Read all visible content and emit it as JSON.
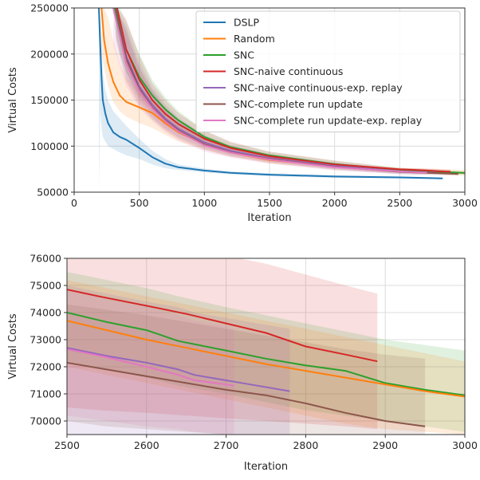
{
  "chart_data": [
    {
      "type": "line",
      "xlabel": "Iteration",
      "ylabel": "Virtual Costs",
      "xlim": [
        0,
        3000
      ],
      "ylim": [
        50000,
        250000
      ],
      "xticks": [
        0,
        500,
        1000,
        1500,
        2000,
        2500,
        3000
      ],
      "yticks": [
        50000,
        100000,
        150000,
        200000,
        250000
      ],
      "xtick_labels": [
        "0",
        "500",
        "1000",
        "1500",
        "2000",
        "2500",
        "3000"
      ],
      "ytick_labels": [
        "50000",
        "100000",
        "150000",
        "200000",
        "250000"
      ],
      "grid": true,
      "legend_position": "top-right",
      "series": [
        {
          "name": "DSLP",
          "color": "#1f77b4",
          "x": [
            190,
            200,
            210,
            220,
            240,
            260,
            300,
            350,
            400,
            500,
            600,
            700,
            800,
            1000,
            1200,
            1500,
            2000,
            2500,
            2830
          ],
          "y": [
            250000,
            210000,
            175000,
            150000,
            135000,
            125000,
            115000,
            110000,
            107000,
            98000,
            88000,
            81000,
            77000,
            73500,
            71000,
            69000,
            67000,
            66000,
            65000
          ],
          "band_upper": [
            250000,
            240000,
            210000,
            180000,
            160000,
            150000,
            138000,
            130000,
            122000,
            108000,
            95000,
            86000,
            80000,
            75500,
            72500,
            70500,
            68500,
            67000,
            66000
          ],
          "band_lower": [
            50000,
            140000,
            120000,
            110000,
            105000,
            100000,
            97000,
            93000,
            90000,
            86000,
            80000,
            76000,
            74000,
            71500,
            69500,
            67500,
            65500,
            65000,
            64000
          ]
        },
        {
          "name": "Random",
          "color": "#ff7f0e",
          "x": [
            210,
            230,
            260,
            300,
            350,
            400,
            500,
            600,
            700,
            800,
            1000,
            1200,
            1500,
            2000,
            2500,
            3000
          ],
          "y": [
            250000,
            215000,
            190000,
            170000,
            155000,
            148000,
            142000,
            136000,
            125000,
            115000,
            102000,
            93000,
            85000,
            78000,
            73700,
            70900
          ],
          "band_upper": [
            250000,
            250000,
            240000,
            215000,
            190000,
            175000,
            160000,
            150000,
            138000,
            125000,
            108000,
            98000,
            89000,
            81000,
            76500,
            74000
          ],
          "band_lower": [
            200000,
            185000,
            165000,
            148000,
            138000,
            132000,
            125000,
            120000,
            112000,
            105000,
            96000,
            89000,
            81000,
            75000,
            71000,
            68000
          ]
        },
        {
          "name": "SNC",
          "color": "#2ca02c",
          "x": [
            310,
            350,
            400,
            500,
            600,
            700,
            800,
            1000,
            1200,
            1500,
            2000,
            2500,
            2600,
            2700,
            2800,
            2900,
            3000
          ],
          "y": [
            250000,
            225000,
            205000,
            175000,
            155000,
            140000,
            128000,
            110000,
            99000,
            90000,
            80500,
            74000,
            73300,
            72600,
            72100,
            71500,
            70900
          ],
          "band_upper": [
            250000,
            250000,
            235000,
            200000,
            172000,
            153000,
            138000,
            117000,
            104000,
            94000,
            84000,
            76500,
            75800,
            75000,
            74300,
            73500,
            72700
          ],
          "band_lower": [
            230000,
            200000,
            180000,
            155000,
            140000,
            128000,
            118000,
            104000,
            95000,
            86500,
            77500,
            71500,
            70800,
            70300,
            69900,
            69400,
            69000
          ]
        },
        {
          "name": "SNC-naive continuous",
          "color": "#d62728",
          "x": [
            330,
            400,
            500,
            600,
            700,
            800,
            1000,
            1200,
            1500,
            2000,
            2500,
            2600,
            2700,
            2800,
            2890
          ],
          "y": [
            250000,
            205000,
            172000,
            150000,
            135000,
            124000,
            108000,
            98000,
            89000,
            80000,
            74800,
            74200,
            73600,
            72800,
            72200
          ],
          "band_upper": [
            250000,
            238000,
            198000,
            168000,
            150000,
            136000,
            117000,
            105000,
            94000,
            84500,
            76000,
            76000,
            75600,
            75200,
            74700
          ],
          "band_lower": [
            230000,
            180000,
            152000,
            135000,
            123000,
            114000,
            101000,
            92000,
            84500,
            76500,
            71000,
            70500,
            70000,
            69500,
            69200
          ]
        },
        {
          "name": "SNC-naive continuous-exp. replay",
          "color": "#9467bd",
          "x": [
            320,
            400,
            500,
            600,
            700,
            800,
            1000,
            1200,
            1500,
            2000,
            2500,
            2600,
            2700,
            2780
          ],
          "y": [
            250000,
            198000,
            165000,
            145000,
            130000,
            119000,
            104000,
            95000,
            87000,
            78500,
            72700,
            72100,
            71400,
            71100
          ],
          "band_upper": [
            250000,
            230000,
            190000,
            163000,
            145000,
            131000,
            112000,
            101000,
            91500,
            82000,
            75500,
            75000,
            74600,
            74200
          ],
          "band_lower": [
            220000,
            175000,
            148000,
            131000,
            119000,
            110000,
            98000,
            90000,
            83000,
            75000,
            69500,
            69500,
            69500,
            69500
          ]
        },
        {
          "name": "SNC-complete run update",
          "color": "#8c564b",
          "x": [
            320,
            400,
            500,
            600,
            700,
            800,
            1000,
            1200,
            1500,
            2000,
            2500,
            2600,
            2700,
            2800,
            2900,
            2950
          ],
          "y": [
            250000,
            195000,
            162000,
            142000,
            128000,
            117000,
            102000,
            93500,
            86000,
            77500,
            72150,
            71600,
            71100,
            70600,
            70000,
            69800
          ],
          "band_upper": [
            250000,
            225000,
            185000,
            160000,
            142000,
            129000,
            111000,
            100000,
            90500,
            81000,
            74500,
            74000,
            73400,
            72900,
            72500,
            72300
          ],
          "band_lower": [
            215000,
            170000,
            144000,
            129000,
            117000,
            108000,
            96000,
            88500,
            82000,
            74000,
            69800,
            69300,
            68900,
            68400,
            67900,
            67600
          ]
        },
        {
          "name": "SNC-complete run update-exp. replay",
          "color": "#e377c2",
          "x": [
            300,
            400,
            500,
            600,
            700,
            800,
            1000,
            1200,
            1500,
            2000,
            2500,
            2560,
            2620,
            2660,
            2710
          ],
          "y": [
            250000,
            190000,
            160000,
            141000,
            127000,
            116000,
            101000,
            93000,
            85500,
            77000,
            72600,
            72100,
            71700,
            71500,
            71300
          ],
          "band_upper": [
            250000,
            220000,
            182000,
            158000,
            140000,
            127000,
            109000,
            99000,
            90000,
            80500,
            75500,
            75000,
            74700,
            74500,
            74200
          ],
          "band_lower": [
            210000,
            165000,
            141000,
            127000,
            115000,
            106000,
            94000,
            87500,
            81000,
            73500,
            69700,
            69500,
            69300,
            69200,
            69100
          ]
        }
      ]
    },
    {
      "type": "line",
      "xlabel": "Iteration",
      "ylabel": "Virtual Costs",
      "xlim": [
        2500,
        3000
      ],
      "ylim": [
        69500,
        76000
      ],
      "xticks": [
        2500,
        2600,
        2700,
        2800,
        2900,
        3000
      ],
      "yticks": [
        70000,
        71000,
        72000,
        73000,
        74000,
        75000,
        76000
      ],
      "xtick_labels": [
        "2500",
        "2600",
        "2700",
        "2800",
        "2900",
        "3000"
      ],
      "ytick_labels": [
        "70000",
        "71000",
        "72000",
        "73000",
        "74000",
        "75000",
        "76000"
      ],
      "grid": true,
      "legend_position": "none",
      "series": [
        {
          "color": "#d62728",
          "x": [
            2500,
            2540,
            2600,
            2650,
            2700,
            2750,
            2800,
            2850,
            2890
          ],
          "y": [
            74850,
            74600,
            74250,
            73950,
            73600,
            73250,
            72750,
            72450,
            72200
          ],
          "band_upper": [
            76500,
            76400,
            76300,
            76200,
            76100,
            75800,
            75400,
            75000,
            74700
          ],
          "band_lower": [
            70500,
            70400,
            70300,
            70200,
            70100,
            70000,
            69900,
            69800,
            69700
          ]
        },
        {
          "color": "#2ca02c",
          "x": [
            2500,
            2550,
            2600,
            2640,
            2700,
            2750,
            2800,
            2850,
            2900,
            2950,
            3000
          ],
          "y": [
            74000,
            73650,
            73350,
            72950,
            72600,
            72300,
            72050,
            71850,
            71400,
            71150,
            70950
          ],
          "band_upper": [
            75500,
            75200,
            74900,
            74600,
            74200,
            73900,
            73600,
            73300,
            73000,
            72800,
            72600
          ],
          "band_lower": [
            72200,
            71900,
            71600,
            71300,
            71000,
            70700,
            70400,
            70200,
            70000,
            69800,
            69600
          ]
        },
        {
          "color": "#ff7f0e",
          "x": [
            2500,
            2550,
            2600,
            2650,
            2700,
            2750,
            2800,
            2850,
            2900,
            2950,
            3000
          ],
          "y": [
            73700,
            73350,
            73000,
            72700,
            72400,
            72100,
            71850,
            71600,
            71350,
            71100,
            70900
          ],
          "band_upper": [
            75200,
            74900,
            74600,
            74300,
            74000,
            73700,
            73400,
            73100,
            72800,
            72500,
            72200
          ],
          "band_lower": [
            72000,
            71700,
            71400,
            71100,
            70800,
            70500,
            70200,
            69900,
            69700,
            69600,
            69500
          ]
        },
        {
          "color": "#9467bd",
          "x": [
            2500,
            2550,
            2600,
            2640,
            2660,
            2700,
            2740,
            2780
          ],
          "y": [
            72700,
            72400,
            72150,
            71900,
            71700,
            71500,
            71300,
            71100
          ],
          "band_upper": [
            75000,
            74700,
            74400,
            74200,
            74000,
            73800,
            73600,
            73400
          ],
          "band_lower": [
            69500,
            69500,
            69500,
            69500,
            69500,
            69500,
            69500,
            69500
          ]
        },
        {
          "color": "#e377c2",
          "x": [
            2500,
            2550,
            2600,
            2640,
            2660,
            2700,
            2710
          ],
          "y": [
            72650,
            72350,
            72000,
            71700,
            71500,
            71350,
            71300
          ],
          "band_upper": [
            74800,
            74500,
            74200,
            73900,
            73700,
            73500,
            73400
          ],
          "band_lower": [
            70200,
            70000,
            69800,
            69700,
            69600,
            69500,
            69500
          ]
        },
        {
          "color": "#8c564b",
          "x": [
            2500,
            2550,
            2600,
            2650,
            2700,
            2750,
            2800,
            2850,
            2900,
            2950
          ],
          "y": [
            72150,
            71900,
            71650,
            71400,
            71150,
            70950,
            70650,
            70300,
            70000,
            69800
          ],
          "band_upper": [
            74300,
            74100,
            73900,
            73650,
            73400,
            73150,
            72900,
            72650,
            72450,
            72300
          ],
          "band_lower": [
            70000,
            69800,
            69700,
            69600,
            69500,
            69500,
            69500,
            69500,
            69500,
            69500
          ]
        }
      ]
    }
  ]
}
